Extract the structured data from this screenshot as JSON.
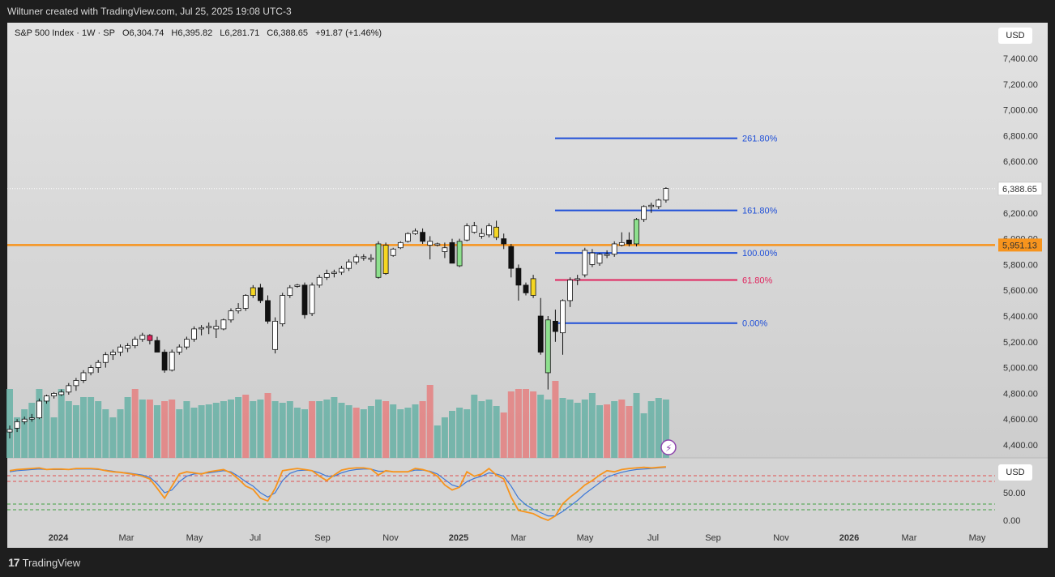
{
  "header": {
    "attribution": "Wiltuner created with TradingView.com, Jul 25, 2025 19:08 UTC-3"
  },
  "legend": {
    "symbol": "S&P 500 Index · 1W · SP",
    "open": "O6,304.74",
    "high": "H6,395.82",
    "low": "L6,281.71",
    "close": "C6,388.65",
    "change": "+91.87 (+1.46%)"
  },
  "currency_main": "USD",
  "currency_osc": "USD",
  "footer": {
    "brand": "TradingView"
  },
  "price_axis": {
    "ticks": [
      "7,400.00",
      "7,200.00",
      "7,000.00",
      "6,800.00",
      "6,600.00",
      "6,400.00",
      "6,200.00",
      "6,000.00",
      "5,800.00",
      "5,600.00",
      "5,400.00",
      "5,200.00",
      "5,000.00",
      "4,800.00",
      "4,600.00",
      "4,400.00"
    ],
    "tick_values": [
      7400,
      7200,
      7000,
      6800,
      6600,
      6400,
      6200,
      6000,
      5800,
      5600,
      5400,
      5200,
      5000,
      4800,
      4600,
      4400
    ],
    "last_price_label": "6,388.65",
    "last_price": 6388.65,
    "line_price_label": "5,951.13",
    "line_price": 5951.13
  },
  "osc_axis": {
    "ticks": [
      "50.00",
      "0.00"
    ],
    "tick_values": [
      50,
      0
    ]
  },
  "time_axis": [
    "2024",
    "Mar",
    "May",
    "Jul",
    "Sep",
    "Nov",
    "2025",
    "Mar",
    "May",
    "Jul",
    "Sep",
    "Nov",
    "2026",
    "Mar",
    "May"
  ],
  "colors": {
    "orange_line": "#f7941d",
    "fib_blue": "#1f4fd8",
    "fib_red": "#e0245e",
    "vol_up": "#6fb3a8",
    "vol_down": "#e38585",
    "osc_fast": "#f7941d",
    "osc_slow": "#3c78d8"
  },
  "chart_data": {
    "type": "candlestick",
    "interval": "1W",
    "price_range": [
      4400,
      7450
    ],
    "fib_levels": [
      {
        "label": "261.80%",
        "price": 6780
      },
      {
        "label": "161.80%",
        "price": 6220
      },
      {
        "label": "100.00%",
        "price": 5890
      },
      {
        "label": "61.80%",
        "price": 5680
      },
      {
        "label": "0.00%",
        "price": 5345
      }
    ],
    "horizontal_line": 5951.13,
    "candles": [
      [
        4500,
        4550,
        4450,
        4520,
        "up"
      ],
      [
        4530,
        4600,
        4500,
        4580,
        "up"
      ],
      [
        4580,
        4620,
        4560,
        4600,
        "up"
      ],
      [
        4600,
        4640,
        4580,
        4610,
        "up"
      ],
      [
        4610,
        4760,
        4600,
        4740,
        "up"
      ],
      [
        4740,
        4790,
        4720,
        4780,
        "up"
      ],
      [
        4780,
        4810,
        4760,
        4800,
        "up"
      ],
      [
        4790,
        4830,
        4780,
        4810,
        "up"
      ],
      [
        4810,
        4880,
        4790,
        4860,
        "up"
      ],
      [
        4860,
        4920,
        4820,
        4900,
        "up"
      ],
      [
        4900,
        4980,
        4880,
        4960,
        "up"
      ],
      [
        4960,
        5020,
        4940,
        5000,
        "up"
      ],
      [
        5000,
        5060,
        4960,
        5040,
        "up"
      ],
      [
        5040,
        5120,
        5000,
        5100,
        "up"
      ],
      [
        5100,
        5140,
        5060,
        5120,
        "up"
      ],
      [
        5120,
        5180,
        5090,
        5160,
        "up"
      ],
      [
        5150,
        5190,
        5120,
        5170,
        "up"
      ],
      [
        5170,
        5240,
        5150,
        5220,
        "up"
      ],
      [
        5220,
        5270,
        5200,
        5250,
        "up"
      ],
      [
        5250,
        5260,
        5180,
        5210,
        "pink"
      ],
      [
        5210,
        5240,
        5120,
        5120,
        "down"
      ],
      [
        5120,
        5140,
        4960,
        4980,
        "down"
      ],
      [
        4980,
        5140,
        4970,
        5120,
        "up"
      ],
      [
        5120,
        5180,
        5100,
        5160,
        "up"
      ],
      [
        5160,
        5240,
        5140,
        5220,
        "up"
      ],
      [
        5220,
        5320,
        5200,
        5300,
        "up"
      ],
      [
        5300,
        5330,
        5250,
        5310,
        "up"
      ],
      [
        5310,
        5350,
        5260,
        5320,
        "up"
      ],
      [
        5320,
        5370,
        5230,
        5300,
        "up"
      ],
      [
        5300,
        5380,
        5290,
        5370,
        "up"
      ],
      [
        5370,
        5460,
        5350,
        5440,
        "up"
      ],
      [
        5440,
        5500,
        5420,
        5460,
        "up"
      ],
      [
        5460,
        5570,
        5440,
        5560,
        "up"
      ],
      [
        5560,
        5640,
        5540,
        5620,
        "yellow"
      ],
      [
        5620,
        5650,
        5500,
        5520,
        "down"
      ],
      [
        5520,
        5560,
        5340,
        5360,
        "down"
      ],
      [
        5360,
        5390,
        5110,
        5140,
        "up"
      ],
      [
        5340,
        5580,
        5320,
        5560,
        "up"
      ],
      [
        5560,
        5640,
        5540,
        5620,
        "up"
      ],
      [
        5630,
        5650,
        5620,
        5640,
        "up"
      ],
      [
        5640,
        5660,
        5380,
        5410,
        "down"
      ],
      [
        5420,
        5660,
        5400,
        5640,
        "up"
      ],
      [
        5640,
        5720,
        5620,
        5700,
        "up"
      ],
      [
        5700,
        5760,
        5680,
        5730,
        "up"
      ],
      [
        5730,
        5760,
        5700,
        5740,
        "up"
      ],
      [
        5740,
        5790,
        5720,
        5770,
        "up"
      ],
      [
        5770,
        5840,
        5750,
        5820,
        "up"
      ],
      [
        5820,
        5880,
        5800,
        5860,
        "up"
      ],
      [
        5860,
        5880,
        5830,
        5850,
        "up"
      ],
      [
        5840,
        5880,
        5820,
        5850,
        "up"
      ],
      [
        5700,
        5980,
        5690,
        5960,
        "green"
      ],
      [
        5730,
        5970,
        5720,
        5950,
        "yellow"
      ],
      [
        5870,
        5930,
        5860,
        5920,
        "up"
      ],
      [
        5930,
        5980,
        5920,
        5970,
        "up"
      ],
      [
        5980,
        6050,
        5970,
        6040,
        "up"
      ],
      [
        6040,
        6080,
        6030,
        6060,
        "up"
      ],
      [
        6050,
        6080,
        5960,
        5980,
        "down"
      ],
      [
        5980,
        6020,
        5840,
        5950,
        "up"
      ],
      [
        5950,
        5970,
        5940,
        5960,
        "up"
      ],
      [
        5900,
        5970,
        5850,
        5930,
        "up"
      ],
      [
        5970,
        6000,
        5810,
        5810,
        "down"
      ],
      [
        5790,
        6000,
        5780,
        5980,
        "green"
      ],
      [
        5990,
        6120,
        5980,
        6100,
        "up"
      ],
      [
        6100,
        6130,
        6040,
        6050,
        "up"
      ],
      [
        6020,
        6080,
        6000,
        6040,
        "up"
      ],
      [
        6030,
        6120,
        6010,
        6100,
        "up"
      ],
      [
        6090,
        6140,
        5990,
        6010,
        "yellow"
      ],
      [
        6000,
        6040,
        5920,
        5960,
        "down"
      ],
      [
        5940,
        5960,
        5700,
        5770,
        "down"
      ],
      [
        5770,
        5800,
        5520,
        5640,
        "down"
      ],
      [
        5640,
        5660,
        5560,
        5580,
        "down"
      ],
      [
        5560,
        5720,
        5540,
        5690,
        "yellow"
      ],
      [
        5400,
        5540,
        5100,
        5120,
        "down"
      ],
      [
        4960,
        5400,
        4830,
        5370,
        "green"
      ],
      [
        5280,
        5450,
        5200,
        5360,
        "down"
      ],
      [
        5270,
        5530,
        5100,
        5520,
        "up"
      ],
      [
        5520,
        5700,
        5470,
        5680,
        "up"
      ],
      [
        5680,
        5720,
        5640,
        5690,
        "up"
      ],
      [
        5720,
        5930,
        5700,
        5910,
        "up"
      ],
      [
        5890,
        5920,
        5780,
        5800,
        "up"
      ],
      [
        5810,
        5890,
        5790,
        5880,
        "up"
      ],
      [
        5880,
        5910,
        5850,
        5880,
        "up"
      ],
      [
        5880,
        5980,
        5860,
        5960,
        "up"
      ],
      [
        5950,
        6050,
        5940,
        5970,
        "up"
      ],
      [
        5990,
        6050,
        5940,
        5960,
        "down"
      ],
      [
        5960,
        6160,
        5940,
        6150,
        "green"
      ],
      [
        6150,
        6260,
        6130,
        6250,
        "up"
      ],
      [
        6250,
        6280,
        6200,
        6260,
        "up"
      ],
      [
        6250,
        6310,
        6230,
        6300,
        "up"
      ],
      [
        6300,
        6400,
        6280,
        6390,
        "up"
      ]
    ],
    "volume": [
      [
        85,
        "g"
      ],
      [
        50,
        "g"
      ],
      [
        60,
        "g"
      ],
      [
        68,
        "g"
      ],
      [
        85,
        "g"
      ],
      [
        75,
        "g"
      ],
      [
        50,
        "g"
      ],
      [
        85,
        "g"
      ],
      [
        70,
        "g"
      ],
      [
        65,
        "g"
      ],
      [
        75,
        "g"
      ],
      [
        75,
        "g"
      ],
      [
        70,
        "g"
      ],
      [
        60,
        "g"
      ],
      [
        50,
        "g"
      ],
      [
        60,
        "g"
      ],
      [
        75,
        "g"
      ],
      [
        85,
        "r"
      ],
      [
        72,
        "g"
      ],
      [
        72,
        "r"
      ],
      [
        65,
        "g"
      ],
      [
        70,
        "r"
      ],
      [
        72,
        "r"
      ],
      [
        60,
        "g"
      ],
      [
        70,
        "g"
      ],
      [
        62,
        "g"
      ],
      [
        65,
        "g"
      ],
      [
        66,
        "g"
      ],
      [
        68,
        "g"
      ],
      [
        70,
        "g"
      ],
      [
        72,
        "g"
      ],
      [
        75,
        "g"
      ],
      [
        78,
        "r"
      ],
      [
        70,
        "g"
      ],
      [
        72,
        "g"
      ],
      [
        80,
        "r"
      ],
      [
        70,
        "g"
      ],
      [
        68,
        "g"
      ],
      [
        70,
        "g"
      ],
      [
        62,
        "g"
      ],
      [
        60,
        "g"
      ],
      [
        70,
        "r"
      ],
      [
        70,
        "g"
      ],
      [
        72,
        "g"
      ],
      [
        75,
        "g"
      ],
      [
        68,
        "g"
      ],
      [
        65,
        "g"
      ],
      [
        62,
        "r"
      ],
      [
        60,
        "g"
      ],
      [
        64,
        "g"
      ],
      [
        72,
        "g"
      ],
      [
        70,
        "r"
      ],
      [
        66,
        "g"
      ],
      [
        60,
        "g"
      ],
      [
        62,
        "g"
      ],
      [
        66,
        "g"
      ],
      [
        70,
        "r"
      ],
      [
        90,
        "r"
      ],
      [
        40,
        "g"
      ],
      [
        50,
        "g"
      ],
      [
        58,
        "g"
      ],
      [
        62,
        "g"
      ],
      [
        60,
        "g"
      ],
      [
        78,
        "g"
      ],
      [
        70,
        "g"
      ],
      [
        72,
        "g"
      ],
      [
        64,
        "g"
      ],
      [
        56,
        "r"
      ],
      [
        82,
        "r"
      ],
      [
        85,
        "r"
      ],
      [
        85,
        "r"
      ],
      [
        82,
        "r"
      ],
      [
        78,
        "g"
      ],
      [
        72,
        "g"
      ],
      [
        95,
        "r"
      ],
      [
        74,
        "g"
      ],
      [
        72,
        "g"
      ],
      [
        68,
        "g"
      ],
      [
        72,
        "g"
      ],
      [
        80,
        "g"
      ],
      [
        65,
        "g"
      ],
      [
        66,
        "r"
      ],
      [
        70,
        "g"
      ],
      [
        72,
        "r"
      ],
      [
        64,
        "r"
      ],
      [
        80,
        "g"
      ],
      [
        55,
        "g"
      ],
      [
        70,
        "g"
      ],
      [
        74,
        "g"
      ],
      [
        72,
        "g"
      ]
    ],
    "oscillator": {
      "fast": [
        90,
        92,
        93,
        94,
        95,
        92,
        93,
        93,
        92,
        94,
        94,
        94,
        93,
        90,
        88,
        87,
        85,
        83,
        80,
        75,
        58,
        40,
        62,
        84,
        88,
        86,
        84,
        88,
        90,
        92,
        86,
        75,
        62,
        56,
        40,
        35,
        58,
        90,
        92,
        94,
        92,
        90,
        80,
        72,
        82,
        91,
        94,
        95,
        95,
        93,
        82,
        90,
        88,
        88,
        88,
        94,
        92,
        88,
        80,
        64,
        55,
        60,
        88,
        80,
        84,
        94,
        82,
        75,
        42,
        18,
        15,
        12,
        5,
        0,
        8,
        30,
        42,
        52,
        64,
        72,
        82,
        90,
        88,
        92,
        94,
        95,
        96,
        95,
        96,
        97
      ],
      "slow": [
        88,
        90,
        91,
        92,
        93,
        92,
        92,
        92,
        92,
        93,
        93,
        93,
        92,
        91,
        89,
        87,
        86,
        84,
        82,
        78,
        66,
        50,
        55,
        70,
        80,
        84,
        85,
        86,
        88,
        90,
        88,
        80,
        70,
        62,
        50,
        42,
        50,
        72,
        85,
        90,
        91,
        90,
        86,
        80,
        80,
        86,
        90,
        92,
        93,
        93,
        89,
        89,
        88,
        88,
        88,
        91,
        91,
        89,
        84,
        74,
        64,
        60,
        70,
        76,
        80,
        86,
        84,
        80,
        62,
        40,
        28,
        20,
        14,
        8,
        8,
        16,
        26,
        36,
        48,
        58,
        68,
        78,
        83,
        87,
        90,
        92,
        93,
        94,
        95,
        96
      ]
    }
  }
}
